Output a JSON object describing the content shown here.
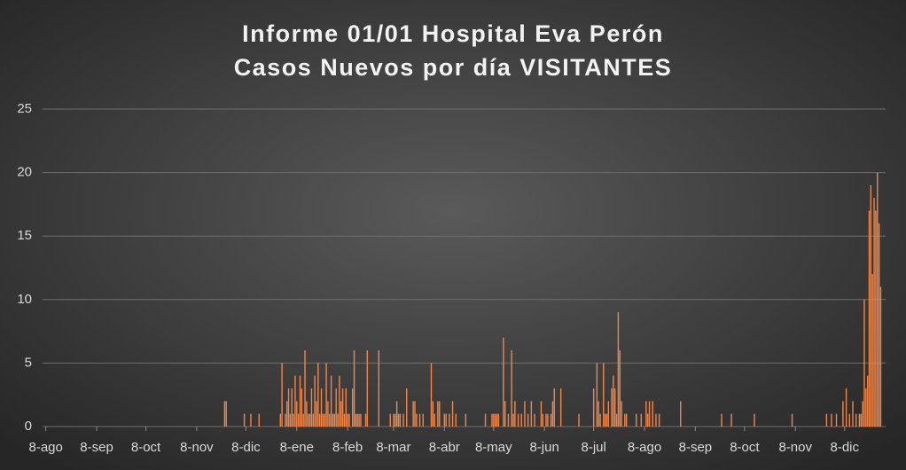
{
  "chart_data": {
    "type": "bar",
    "title": "Informe 01/01 Hospital Eva Perón",
    "subtitle": "Casos Nuevos por día VISITANTES",
    "color": "#f0874a",
    "grid": true,
    "xlim": [
      -2,
      512
    ],
    "xticks": [
      {
        "value": 0,
        "label": "8-ago"
      },
      {
        "value": 31,
        "label": "8-sep"
      },
      {
        "value": 61,
        "label": "8-oct"
      },
      {
        "value": 92,
        "label": "8-nov"
      },
      {
        "value": 122,
        "label": "8-dic"
      },
      {
        "value": 153,
        "label": "8-ene"
      },
      {
        "value": 184,
        "label": "8-feb"
      },
      {
        "value": 212,
        "label": "8-mar"
      },
      {
        "value": 243,
        "label": "8-abr"
      },
      {
        "value": 273,
        "label": "8-may"
      },
      {
        "value": 304,
        "label": "8-jun"
      },
      {
        "value": 334,
        "label": "8-jul"
      },
      {
        "value": 365,
        "label": "8-ago"
      },
      {
        "value": 396,
        "label": "8-sep"
      },
      {
        "value": 426,
        "label": "8-oct"
      },
      {
        "value": 457,
        "label": "8-nov"
      },
      {
        "value": 487,
        "label": "8-dic"
      }
    ],
    "ylim": [
      0,
      25
    ],
    "yticks": [
      0,
      5,
      10,
      15,
      20,
      25
    ],
    "x": [
      109,
      110,
      121,
      125,
      130,
      143,
      144,
      146,
      147,
      148,
      149,
      150,
      151,
      152,
      153,
      154,
      155,
      156,
      157,
      158,
      159,
      160,
      161,
      162,
      163,
      164,
      165,
      166,
      167,
      168,
      169,
      170,
      171,
      172,
      173,
      174,
      175,
      176,
      177,
      178,
      179,
      180,
      181,
      182,
      183,
      184,
      185,
      187,
      188,
      189,
      190,
      191,
      192,
      195,
      196,
      203,
      210,
      212,
      213,
      214,
      215,
      216,
      218,
      220,
      224,
      225,
      226,
      228,
      230,
      235,
      236,
      237,
      239,
      240,
      243,
      244,
      246,
      248,
      250,
      256,
      268,
      272,
      273,
      274,
      275,
      276,
      279,
      280,
      282,
      284,
      285,
      286,
      288,
      290,
      292,
      294,
      296,
      298,
      302,
      303,
      305,
      306,
      308,
      309,
      310,
      314,
      325,
      334,
      336,
      337,
      338,
      340,
      341,
      342,
      343,
      345,
      346,
      347,
      348,
      349,
      350,
      351,
      353,
      354,
      360,
      363,
      366,
      367,
      368,
      370,
      372,
      374,
      387,
      412,
      418,
      432,
      455,
      476,
      479,
      482,
      486,
      488,
      490,
      492,
      494,
      496,
      497,
      498,
      499,
      500,
      501,
      502,
      503,
      504,
      505,
      506,
      507,
      508,
      509
    ],
    "values": [
      2,
      2,
      1,
      1,
      1,
      1,
      5,
      1,
      2,
      3,
      1,
      3,
      1,
      4,
      2,
      1,
      4,
      3,
      1,
      6,
      2,
      1,
      1,
      3,
      1,
      4,
      2,
      5,
      1,
      3,
      1,
      1,
      5,
      2,
      1,
      4,
      1,
      1,
      3,
      1,
      4,
      2,
      3,
      1,
      3,
      1,
      1,
      3,
      6,
      1,
      1,
      1,
      1,
      1,
      6,
      6,
      1,
      1,
      1,
      2,
      1,
      1,
      1,
      3,
      2,
      2,
      1,
      1,
      1,
      5,
      2,
      1,
      2,
      2,
      1,
      1,
      1,
      2,
      1,
      1,
      1,
      1,
      1,
      1,
      1,
      1,
      7,
      2,
      1,
      6,
      1,
      2,
      1,
      1,
      2,
      1,
      2,
      1,
      2,
      1,
      1,
      1,
      1,
      2,
      3,
      3,
      1,
      3,
      5,
      2,
      1,
      5,
      1,
      1,
      2,
      3,
      4,
      3,
      1,
      9,
      6,
      2,
      1,
      1,
      1,
      1,
      2,
      1,
      2,
      2,
      1,
      1,
      2,
      1,
      1,
      1,
      1,
      1,
      1,
      1,
      2,
      3,
      1,
      2,
      1,
      1,
      1,
      2,
      10,
      3,
      4,
      17,
      19,
      12,
      18,
      17,
      20,
      16,
      11
    ]
  }
}
